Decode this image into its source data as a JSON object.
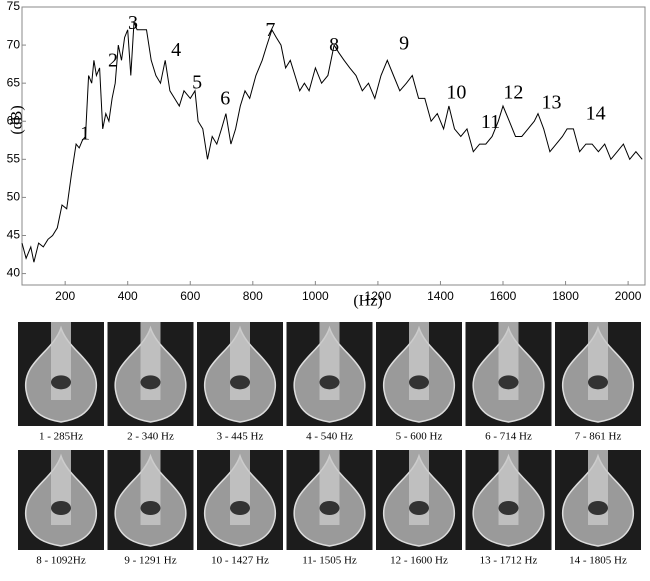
{
  "chart_data": {
    "type": "line",
    "xlabel": "(Hz)",
    "ylabel": "(dB)",
    "x": [
      62,
      75,
      90,
      100,
      115,
      130,
      145,
      160,
      175,
      190,
      205,
      220,
      235,
      245,
      255,
      265,
      275,
      285,
      292,
      300,
      310,
      320,
      330,
      340,
      350,
      360,
      370,
      380,
      390,
      400,
      410,
      420,
      430,
      445,
      460,
      475,
      490,
      505,
      520,
      535,
      550,
      565,
      580,
      600,
      615,
      625,
      640,
      655,
      670,
      685,
      700,
      714,
      730,
      745,
      760,
      775,
      790,
      810,
      830,
      845,
      861,
      875,
      890,
      905,
      920,
      935,
      950,
      965,
      980,
      1000,
      1020,
      1040,
      1060,
      1075,
      1092,
      1110,
      1130,
      1150,
      1170,
      1190,
      1210,
      1230,
      1250,
      1270,
      1291,
      1310,
      1330,
      1350,
      1370,
      1390,
      1410,
      1427,
      1445,
      1465,
      1485,
      1505,
      1525,
      1545,
      1565,
      1585,
      1600,
      1620,
      1640,
      1660,
      1680,
      1700,
      1712,
      1730,
      1750,
      1770,
      1790,
      1805,
      1825,
      1845,
      1865,
      1885,
      1905,
      1925,
      1945,
      1965,
      1985,
      2005,
      2025,
      2045
    ],
    "values": [
      44,
      42,
      43.5,
      41.5,
      44,
      43.5,
      44.5,
      45,
      46,
      49,
      48.5,
      53,
      57,
      56.5,
      57.5,
      58,
      66,
      65,
      68,
      66,
      67,
      59,
      61,
      60,
      63,
      65,
      70,
      68,
      71,
      72,
      66,
      73,
      72,
      72,
      72,
      68,
      66,
      65,
      68,
      64,
      63,
      62,
      64,
      63,
      64,
      60,
      59,
      55,
      58,
      57,
      59,
      61,
      57,
      59,
      62,
      64,
      63,
      66,
      68,
      70,
      72,
      71,
      70,
      67,
      68,
      66,
      64,
      65,
      64,
      67,
      65,
      66,
      70,
      69,
      68,
      67,
      66,
      64,
      65,
      63,
      66,
      68,
      66,
      64,
      65,
      66,
      63,
      63,
      60,
      61,
      59,
      62,
      59,
      58,
      59,
      56,
      57,
      57,
      58,
      60,
      62,
      60,
      58,
      58,
      59,
      60,
      61,
      59,
      56,
      57,
      58,
      59,
      59,
      56,
      57,
      57,
      56,
      57,
      55,
      56,
      57,
      55,
      56,
      55
    ],
    "color": "#000000",
    "xlim": [
      62,
      2054
    ],
    "ylim": [
      38.5,
      75
    ],
    "xticks": [
      200,
      400,
      600,
      800,
      1000,
      1200,
      1400,
      1600,
      1800,
      2000
    ],
    "yticks": [
      40,
      45,
      50,
      55,
      60,
      65,
      70,
      75
    ],
    "annotations": [
      {
        "text": "1",
        "x": 264,
        "y": 58.2
      },
      {
        "text": "2",
        "x": 353,
        "y": 67.8
      },
      {
        "text": "3",
        "x": 417,
        "y": 72.7
      },
      {
        "text": "4",
        "x": 555,
        "y": 69.2
      },
      {
        "text": "5",
        "x": 622,
        "y": 64.9
      },
      {
        "text": "6",
        "x": 712,
        "y": 62.8
      },
      {
        "text": "7",
        "x": 856,
        "y": 71.8
      },
      {
        "text": "8",
        "x": 1060,
        "y": 69.8
      },
      {
        "text": "9",
        "x": 1284,
        "y": 70
      },
      {
        "text": "10",
        "x": 1451,
        "y": 63.6
      },
      {
        "text": "11",
        "x": 1560,
        "y": 59.7
      },
      {
        "text": "12",
        "x": 1633,
        "y": 63.6
      },
      {
        "text": "13",
        "x": 1755,
        "y": 62.3
      },
      {
        "text": "14",
        "x": 1896,
        "y": 60.8
      }
    ]
  },
  "mode_images": {
    "captions": [
      "1 - 285Hz",
      "2 - 340 Hz",
      "3 - 445 Hz",
      "4 - 540 Hz",
      "5 - 600 Hz",
      "6 - 714 Hz",
      "7 - 861 Hz",
      "8 - 1092Hz",
      "9 - 1291 Hz",
      "10 - 1427 Hz",
      "11- 1505 Hz",
      "12 - 1600 Hz",
      "13 - 1712 Hz",
      "14 - 1805 Hz"
    ]
  }
}
